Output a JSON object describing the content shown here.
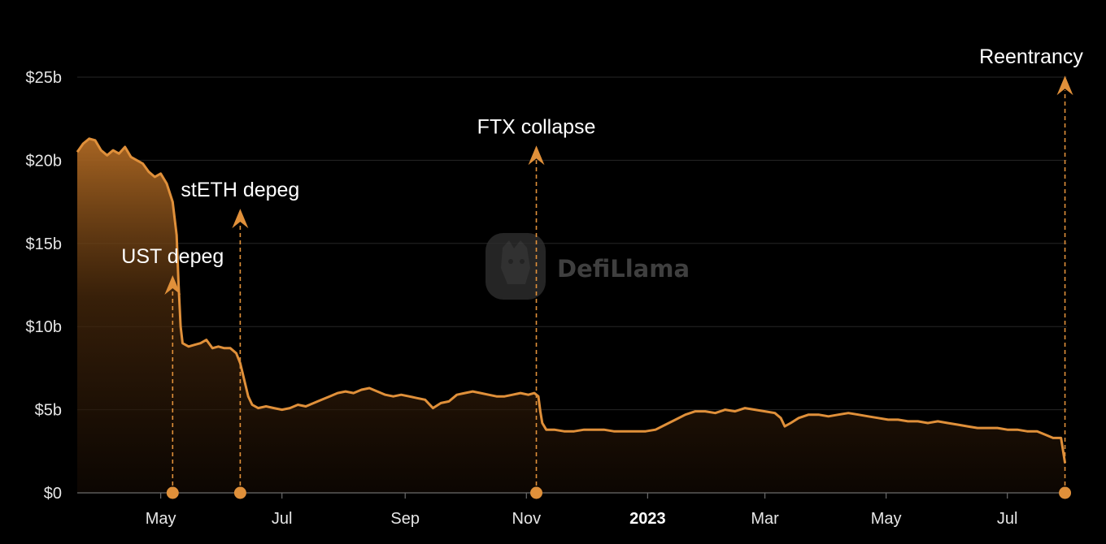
{
  "chart_data": {
    "type": "area",
    "y_unit": "USD billions",
    "ylim": [
      0,
      25
    ],
    "y_ticks": [
      {
        "value": 0,
        "label": "$0"
      },
      {
        "value": 5,
        "label": "$5b"
      },
      {
        "value": 10,
        "label": "$10b"
      },
      {
        "value": 15,
        "label": "$15b"
      },
      {
        "value": 20,
        "label": "$20b"
      },
      {
        "value": 25,
        "label": "$25b"
      }
    ],
    "xlim": [
      "2022-03-20",
      "2023-07-31"
    ],
    "x_ticks": [
      {
        "date": "2022-05-01",
        "label": "May",
        "bold": false
      },
      {
        "date": "2022-07-01",
        "label": "Jul",
        "bold": false
      },
      {
        "date": "2022-09-01",
        "label": "Sep",
        "bold": false
      },
      {
        "date": "2022-11-01",
        "label": "Nov",
        "bold": false
      },
      {
        "date": "2023-01-01",
        "label": "2023",
        "bold": true
      },
      {
        "date": "2023-03-01",
        "label": "Mar",
        "bold": false
      },
      {
        "date": "2023-05-01",
        "label": "May",
        "bold": false
      },
      {
        "date": "2023-07-01",
        "label": "Jul",
        "bold": false
      }
    ],
    "grid": true,
    "series": [
      {
        "color": "#e0903a",
        "points": [
          [
            "2022-03-20",
            20.5
          ],
          [
            "2022-03-23",
            21.0
          ],
          [
            "2022-03-26",
            21.3
          ],
          [
            "2022-03-29",
            21.2
          ],
          [
            "2022-04-01",
            20.6
          ],
          [
            "2022-04-04",
            20.3
          ],
          [
            "2022-04-07",
            20.6
          ],
          [
            "2022-04-10",
            20.4
          ],
          [
            "2022-04-13",
            20.8
          ],
          [
            "2022-04-16",
            20.2
          ],
          [
            "2022-04-19",
            20.0
          ],
          [
            "2022-04-22",
            19.8
          ],
          [
            "2022-04-25",
            19.3
          ],
          [
            "2022-04-28",
            19.0
          ],
          [
            "2022-05-01",
            19.2
          ],
          [
            "2022-05-04",
            18.6
          ],
          [
            "2022-05-07",
            17.5
          ],
          [
            "2022-05-09",
            15.5
          ],
          [
            "2022-05-10",
            12.5
          ],
          [
            "2022-05-11",
            10.0
          ],
          [
            "2022-05-12",
            9.0
          ],
          [
            "2022-05-15",
            8.8
          ],
          [
            "2022-05-18",
            8.9
          ],
          [
            "2022-05-21",
            9.0
          ],
          [
            "2022-05-24",
            9.2
          ],
          [
            "2022-05-27",
            8.7
          ],
          [
            "2022-05-30",
            8.8
          ],
          [
            "2022-06-02",
            8.7
          ],
          [
            "2022-06-05",
            8.7
          ],
          [
            "2022-06-08",
            8.4
          ],
          [
            "2022-06-10",
            7.8
          ],
          [
            "2022-06-12",
            6.8
          ],
          [
            "2022-06-14",
            5.8
          ],
          [
            "2022-06-16",
            5.3
          ],
          [
            "2022-06-19",
            5.1
          ],
          [
            "2022-06-23",
            5.2
          ],
          [
            "2022-06-27",
            5.1
          ],
          [
            "2022-07-01",
            5.0
          ],
          [
            "2022-07-05",
            5.1
          ],
          [
            "2022-07-09",
            5.3
          ],
          [
            "2022-07-13",
            5.2
          ],
          [
            "2022-07-17",
            5.4
          ],
          [
            "2022-07-21",
            5.6
          ],
          [
            "2022-07-25",
            5.8
          ],
          [
            "2022-07-29",
            6.0
          ],
          [
            "2022-08-02",
            6.1
          ],
          [
            "2022-08-06",
            6.0
          ],
          [
            "2022-08-10",
            6.2
          ],
          [
            "2022-08-14",
            6.3
          ],
          [
            "2022-08-18",
            6.1
          ],
          [
            "2022-08-22",
            5.9
          ],
          [
            "2022-08-26",
            5.8
          ],
          [
            "2022-08-30",
            5.9
          ],
          [
            "2022-09-03",
            5.8
          ],
          [
            "2022-09-07",
            5.7
          ],
          [
            "2022-09-11",
            5.6
          ],
          [
            "2022-09-15",
            5.1
          ],
          [
            "2022-09-19",
            5.4
          ],
          [
            "2022-09-23",
            5.5
          ],
          [
            "2022-09-27",
            5.9
          ],
          [
            "2022-10-01",
            6.0
          ],
          [
            "2022-10-05",
            6.1
          ],
          [
            "2022-10-09",
            6.0
          ],
          [
            "2022-10-13",
            5.9
          ],
          [
            "2022-10-17",
            5.8
          ],
          [
            "2022-10-21",
            5.8
          ],
          [
            "2022-10-25",
            5.9
          ],
          [
            "2022-10-29",
            6.0
          ],
          [
            "2022-11-02",
            5.9
          ],
          [
            "2022-11-05",
            6.0
          ],
          [
            "2022-11-07",
            5.8
          ],
          [
            "2022-11-08",
            4.9
          ],
          [
            "2022-11-09",
            4.2
          ],
          [
            "2022-11-11",
            3.8
          ],
          [
            "2022-11-15",
            3.8
          ],
          [
            "2022-11-20",
            3.7
          ],
          [
            "2022-11-25",
            3.7
          ],
          [
            "2022-11-30",
            3.8
          ],
          [
            "2022-12-05",
            3.8
          ],
          [
            "2022-12-10",
            3.8
          ],
          [
            "2022-12-15",
            3.7
          ],
          [
            "2022-12-20",
            3.7
          ],
          [
            "2022-12-25",
            3.7
          ],
          [
            "2022-12-31",
            3.7
          ],
          [
            "2023-01-05",
            3.8
          ],
          [
            "2023-01-10",
            4.1
          ],
          [
            "2023-01-15",
            4.4
          ],
          [
            "2023-01-20",
            4.7
          ],
          [
            "2023-01-25",
            4.9
          ],
          [
            "2023-01-30",
            4.9
          ],
          [
            "2023-02-04",
            4.8
          ],
          [
            "2023-02-09",
            5.0
          ],
          [
            "2023-02-14",
            4.9
          ],
          [
            "2023-02-19",
            5.1
          ],
          [
            "2023-02-24",
            5.0
          ],
          [
            "2023-03-01",
            4.9
          ],
          [
            "2023-03-06",
            4.8
          ],
          [
            "2023-03-09",
            4.5
          ],
          [
            "2023-03-11",
            4.0
          ],
          [
            "2023-03-14",
            4.2
          ],
          [
            "2023-03-18",
            4.5
          ],
          [
            "2023-03-23",
            4.7
          ],
          [
            "2023-03-28",
            4.7
          ],
          [
            "2023-04-02",
            4.6
          ],
          [
            "2023-04-07",
            4.7
          ],
          [
            "2023-04-12",
            4.8
          ],
          [
            "2023-04-17",
            4.7
          ],
          [
            "2023-04-22",
            4.6
          ],
          [
            "2023-04-27",
            4.5
          ],
          [
            "2023-05-02",
            4.4
          ],
          [
            "2023-05-07",
            4.4
          ],
          [
            "2023-05-12",
            4.3
          ],
          [
            "2023-05-17",
            4.3
          ],
          [
            "2023-05-22",
            4.2
          ],
          [
            "2023-05-27",
            4.3
          ],
          [
            "2023-06-01",
            4.2
          ],
          [
            "2023-06-06",
            4.1
          ],
          [
            "2023-06-11",
            4.0
          ],
          [
            "2023-06-16",
            3.9
          ],
          [
            "2023-06-21",
            3.9
          ],
          [
            "2023-06-26",
            3.9
          ],
          [
            "2023-07-01",
            3.8
          ],
          [
            "2023-07-06",
            3.8
          ],
          [
            "2023-07-11",
            3.7
          ],
          [
            "2023-07-16",
            3.7
          ],
          [
            "2023-07-20",
            3.5
          ],
          [
            "2023-07-24",
            3.3
          ],
          [
            "2023-07-28",
            3.3
          ],
          [
            "2023-07-30",
            1.8
          ]
        ]
      }
    ],
    "annotations": [
      {
        "date": "2022-05-07",
        "label": "UST depeg",
        "arrow_top_value": 12.5
      },
      {
        "date": "2022-06-10",
        "label": "stETH depeg",
        "arrow_top_value": 16.5
      },
      {
        "date": "2022-11-06",
        "label": "FTX collapse",
        "arrow_top_value": 20.3
      },
      {
        "date": "2023-07-30",
        "label": "Reentrancy",
        "arrow_top_value": 24.5
      }
    ],
    "watermark": "DefiLlama"
  }
}
